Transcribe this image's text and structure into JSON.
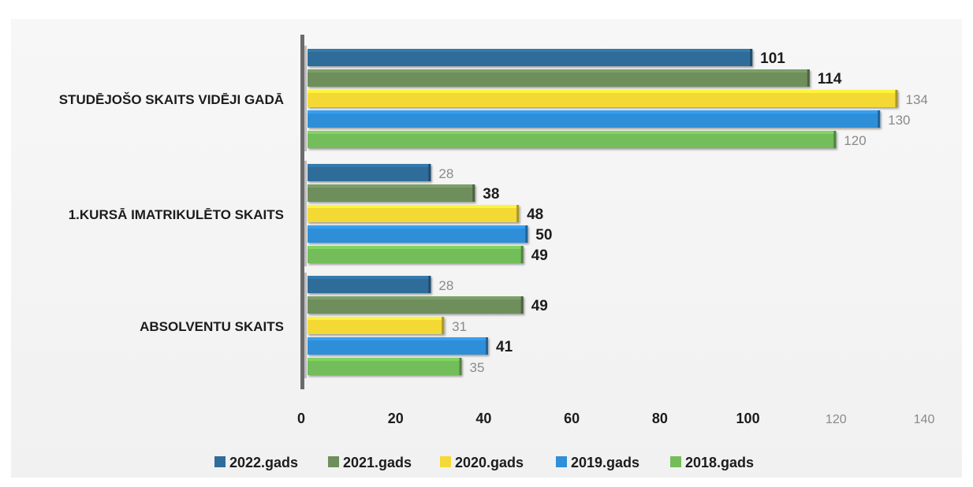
{
  "chart_data": {
    "type": "bar",
    "orientation": "horizontal",
    "categories": [
      "STUDĒJOŠO SKAITS VIDĒJI GADĀ",
      "1.KURSĀ IMATRIKULĒTO SKAITS",
      "ABSOLVENTU SKAITS"
    ],
    "series": [
      {
        "name": "2022.gads",
        "color": "#2f6d9a",
        "values": [
          101,
          28,
          28
        ]
      },
      {
        "name": "2021.gads",
        "color": "#6e8f5c",
        "values": [
          114,
          38,
          49
        ]
      },
      {
        "name": "2020.gads",
        "color": "#f4d936",
        "values": [
          134,
          48,
          31
        ]
      },
      {
        "name": "2019.gads",
        "color": "#2f8fd8",
        "values": [
          130,
          50,
          41
        ]
      },
      {
        "name": "2018.gads",
        "color": "#73bd5a",
        "values": [
          120,
          49,
          35
        ]
      }
    ],
    "data_label_styles": [
      [
        "bold",
        "light",
        "light"
      ],
      [
        "bold",
        "bold",
        "bold"
      ],
      [
        "light",
        "bold",
        "light"
      ],
      [
        "light",
        "bold",
        "bold"
      ],
      [
        "light",
        "bold",
        "light"
      ]
    ],
    "x_ticks": [
      0,
      20,
      40,
      60,
      80,
      100,
      120,
      140
    ],
    "xlim": [
      0,
      140
    ],
    "title": "",
    "xlabel": "",
    "ylabel": "",
    "grid": false,
    "legend_position": "bottom"
  }
}
